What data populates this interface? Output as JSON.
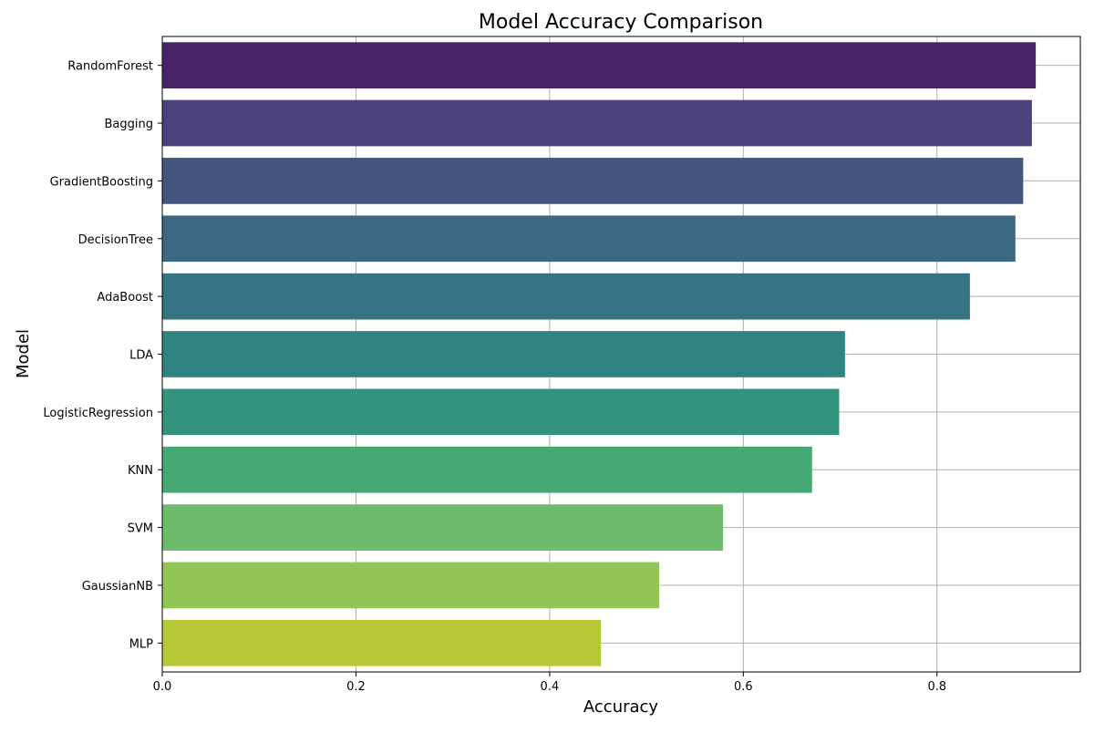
{
  "chart_data": {
    "type": "bar",
    "orientation": "horizontal",
    "title": "Model Accuracy Comparison",
    "xlabel": "Accuracy",
    "ylabel": "Model",
    "xlim": [
      0,
      0.948
    ],
    "xticks": [
      "0.0",
      "0.2",
      "0.4",
      "0.6",
      "0.8"
    ],
    "grid": true,
    "categories": [
      "RandomForest",
      "Bagging",
      "GradientBoosting",
      "DecisionTree",
      "AdaBoost",
      "LDA",
      "LogisticRegression",
      "KNN",
      "SVM",
      "GaussianNB",
      "MLP"
    ],
    "values": [
      0.902,
      0.898,
      0.889,
      0.881,
      0.834,
      0.705,
      0.699,
      0.671,
      0.579,
      0.513,
      0.453
    ],
    "colors": [
      "#482466",
      "#4a427a",
      "#42567f",
      "#3d6884",
      "#357583",
      "#2e8480",
      "#32947c",
      "#46a872",
      "#6cbc6c",
      "#93c555",
      "#b5c734"
    ]
  }
}
